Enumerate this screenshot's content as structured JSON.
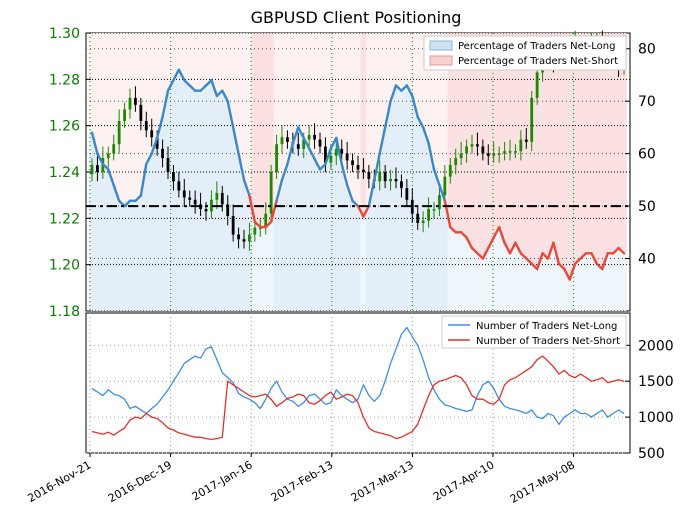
{
  "title": "GBPUSD Client Positioning",
  "chart_data": [
    {
      "type": "candlestick",
      "name": "GBPUSD price",
      "x_labels": [
        "2016-Nov-21",
        "2016-Dec-19",
        "2017-Jan-16",
        "2017-Feb-13",
        "2017-Mar-13",
        "2017-Apr-10",
        "2017-May-08"
      ],
      "price_axis": {
        "ticks": [
          "1.18",
          "1.20",
          "1.22",
          "1.24",
          "1.26",
          "1.28",
          "1.30"
        ],
        "range": [
          1.18,
          1.3
        ]
      },
      "percent_axis": {
        "ticks": [
          "40",
          "50",
          "60",
          "70",
          "80"
        ],
        "range": [
          30,
          83
        ]
      },
      "legend": [
        "Percentage of Traders Net-Long",
        "Percentage of Traders Net-Short"
      ],
      "legend_position": "top-right",
      "reference_line_percent": 50,
      "grid": true,
      "price_close": [
        1.243,
        1.24,
        1.246,
        1.248,
        1.252,
        1.262,
        1.267,
        1.272,
        1.269,
        1.262,
        1.258,
        1.255,
        1.25,
        1.246,
        1.24,
        1.236,
        1.232,
        1.229,
        1.228,
        1.226,
        1.224,
        1.223,
        1.228,
        1.231,
        1.226,
        1.221,
        1.213,
        1.211,
        1.21,
        1.213,
        1.216,
        1.216,
        1.222,
        1.24,
        1.252,
        1.255,
        1.253,
        1.252,
        1.25,
        1.254,
        1.256,
        1.254,
        1.251,
        1.244,
        1.247,
        1.25,
        1.248,
        1.245,
        1.243,
        1.241,
        1.24,
        1.237,
        1.236,
        1.24,
        1.236,
        1.237,
        1.236,
        1.233,
        1.228,
        1.222,
        1.218,
        1.219,
        1.224,
        1.224,
        1.23,
        1.238,
        1.243,
        1.246,
        1.248,
        1.251,
        1.252,
        1.251,
        1.248,
        1.247,
        1.248,
        1.248,
        1.249,
        1.249,
        1.249,
        1.254,
        1.253,
        1.272,
        1.283,
        1.289,
        1.288,
        1.287,
        1.29,
        1.293,
        1.292,
        1.296,
        1.29,
        1.294,
        1.295,
        1.297,
        1.29,
        1.292,
        1.287,
        1.285,
        1.292
      ],
      "percent_net_long": [
        64,
        60,
        58,
        57,
        54,
        51,
        50,
        51,
        51,
        52,
        58,
        60,
        63,
        67,
        72,
        74,
        76,
        74,
        73,
        72,
        72,
        73,
        74,
        71,
        72,
        70,
        65,
        60,
        55,
        52,
        47,
        46,
        46,
        47,
        51,
        55,
        58,
        62,
        65,
        63,
        61,
        59,
        57,
        58,
        61,
        63,
        58,
        54,
        51,
        50,
        48,
        50,
        55,
        60,
        65,
        70,
        73,
        72,
        73,
        71,
        67,
        65,
        62,
        57,
        54,
        51,
        46,
        45,
        45,
        44,
        42,
        41,
        40,
        42,
        44,
        46,
        43,
        41,
        43,
        41,
        40,
        39,
        38,
        41,
        40,
        43,
        39,
        38,
        36,
        39,
        40,
        41,
        41,
        39,
        38,
        41,
        41,
        42,
        41
      ]
    },
    {
      "type": "line",
      "name": "Number of traders",
      "y_axis": {
        "ticks": [
          "500",
          "1000",
          "1500",
          "2000"
        ],
        "range": [
          500,
          2450
        ]
      },
      "x_labels": [
        "2016-Nov-21",
        "2016-Dec-19",
        "2017-Jan-16",
        "2017-Feb-13",
        "2017-Mar-13",
        "2017-Apr-10",
        "2017-May-08"
      ],
      "legend_position": "top-right",
      "grid": true,
      "series": [
        {
          "name": "Number of Traders Net-Long",
          "color": "#3d8ee6",
          "values": [
            1400,
            1350,
            1300,
            1380,
            1320,
            1300,
            1250,
            1120,
            1150,
            1100,
            1050,
            1120,
            1180,
            1280,
            1380,
            1500,
            1620,
            1750,
            1800,
            1850,
            1820,
            1950,
            1980,
            1800,
            1620,
            1550,
            1480,
            1330,
            1280,
            1250,
            1200,
            1120,
            1250,
            1400,
            1500,
            1350,
            1250,
            1220,
            1150,
            1200,
            1300,
            1320,
            1250,
            1180,
            1200,
            1380,
            1300,
            1250,
            1200,
            1250,
            1450,
            1300,
            1220,
            1300,
            1500,
            1750,
            1950,
            2150,
            2250,
            2120,
            2000,
            1800,
            1550,
            1380,
            1250,
            1170,
            1150,
            1120,
            1100,
            1080,
            1100,
            1300,
            1450,
            1500,
            1400,
            1250,
            1150,
            1120,
            1100,
            1080,
            1050,
            1100,
            1000,
            980,
            1050,
            1020,
            900,
            1000,
            1050,
            1100,
            1050,
            1050,
            1000,
            1050,
            1100,
            1000,
            1050,
            1100,
            1050
          ]
        },
        {
          "name": "Number of Traders Net-Short",
          "color": "#e6302b",
          "values": [
            800,
            780,
            760,
            790,
            750,
            800,
            850,
            960,
            1000,
            980,
            1050,
            1000,
            980,
            920,
            850,
            820,
            780,
            760,
            740,
            720,
            720,
            700,
            690,
            700,
            720,
            1500,
            1450,
            1400,
            1350,
            1300,
            1280,
            1300,
            1320,
            1250,
            1150,
            1200,
            1260,
            1280,
            1320,
            1300,
            1200,
            1180,
            1230,
            1300,
            1350,
            1250,
            1280,
            1320,
            1300,
            1200,
            1000,
            850,
            800,
            780,
            760,
            740,
            700,
            720,
            760,
            800,
            900,
            1100,
            1300,
            1450,
            1500,
            1520,
            1550,
            1580,
            1550,
            1450,
            1300,
            1250,
            1250,
            1200,
            1180,
            1250,
            1450,
            1520,
            1550,
            1600,
            1650,
            1700,
            1800,
            1850,
            1780,
            1700,
            1600,
            1650,
            1580,
            1550,
            1600,
            1550,
            1500,
            1520,
            1550,
            1480,
            1500,
            1520,
            1500
          ]
        }
      ]
    }
  ]
}
